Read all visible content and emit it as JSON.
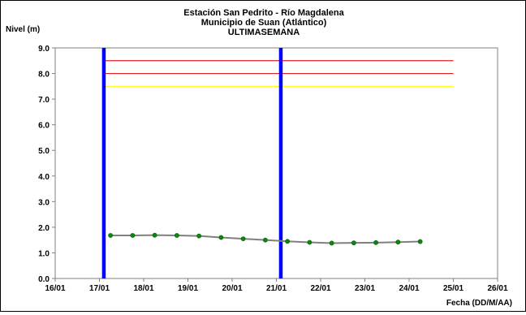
{
  "chart_data": {
    "type": "line",
    "title": [
      "Estación San Pedrito - Río Magdalena",
      "Municipio de Suan (Atlántico)",
      "ULTIMASEMANA"
    ],
    "ylabel": "Nivel (m)",
    "xlabel": "Fecha (DD/M/AA)",
    "ylim": [
      0,
      9
    ],
    "xlim": [
      0,
      10
    ],
    "y_ticks": [
      "0.0",
      "1.0",
      "2.0",
      "3.0",
      "4.0",
      "5.0",
      "6.0",
      "7.0",
      "8.0",
      "9.0"
    ],
    "x_ticks": [
      "16/01",
      "17/01",
      "18/01",
      "19/01",
      "20/01",
      "21/01",
      "22/01",
      "23/01",
      "24/01",
      "25/01",
      "26/01"
    ],
    "grid": false,
    "series": [
      {
        "color": "#808080",
        "marker_color": "#0a8a0a",
        "x": [
          1.25,
          1.75,
          2.25,
          2.75,
          3.25,
          3.75,
          4.25,
          4.75,
          5.25,
          5.75,
          6.25,
          6.75,
          7.25,
          7.75,
          8.25
        ],
        "y": [
          1.68,
          1.68,
          1.69,
          1.68,
          1.66,
          1.6,
          1.55,
          1.5,
          1.45,
          1.41,
          1.38,
          1.39,
          1.4,
          1.42,
          1.44
        ]
      }
    ],
    "reference_lines": [
      {
        "y": 8.5,
        "color": "#e02020",
        "x_start": 1.1,
        "x_end": 9.0
      },
      {
        "y": 8.0,
        "color": "#e02020",
        "x_start": 1.1,
        "x_end": 9.0
      },
      {
        "y": 7.5,
        "color": "#ffff00",
        "x_start": 1.1,
        "x_end": 9.0
      }
    ],
    "vertical_markers": [
      {
        "x": 1.1,
        "color": "#0000ff"
      },
      {
        "x": 5.1,
        "color": "#0000ff"
      }
    ]
  }
}
